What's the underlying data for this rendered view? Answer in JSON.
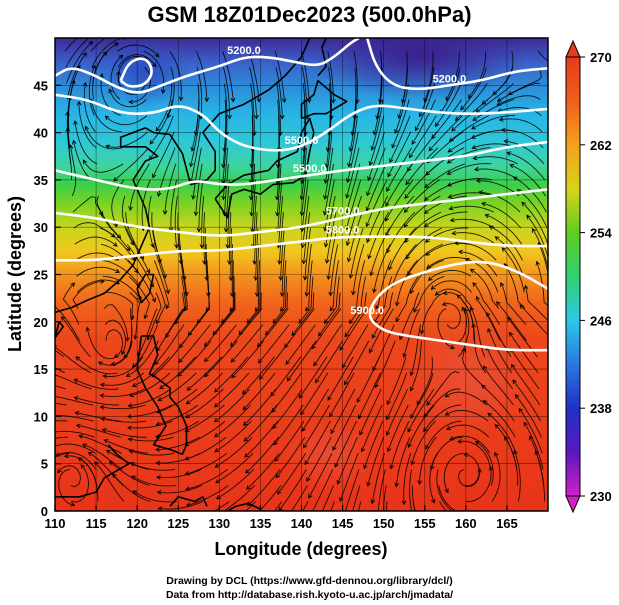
{
  "title": "GSM 18Z01Dec2023 (500.0hPa)",
  "x_axis": {
    "label": "Longitude (degrees)",
    "range": [
      110,
      170
    ],
    "ticks": [
      110,
      115,
      120,
      125,
      130,
      135,
      140,
      145,
      150,
      155,
      160,
      165
    ]
  },
  "y_axis": {
    "label": "Latitude  (degrees)",
    "range": [
      0,
      50
    ],
    "ticks": [
      0,
      5,
      10,
      15,
      20,
      25,
      30,
      35,
      40,
      45
    ]
  },
  "colorbar": {
    "min": 230,
    "max": 270,
    "ticks": [
      230,
      238,
      246,
      254,
      262,
      270
    ]
  },
  "contours": [
    {
      "label": "5200.0",
      "points": [
        [
          110,
          46
        ],
        [
          112,
          47
        ],
        [
          115,
          46
        ],
        [
          117,
          45
        ],
        [
          120,
          44
        ],
        [
          123,
          45
        ],
        [
          126,
          46
        ],
        [
          130,
          47
        ],
        [
          133,
          48
        ],
        [
          136,
          48
        ],
        [
          139,
          47.5
        ],
        [
          142,
          47
        ],
        [
          144,
          48
        ],
        [
          146,
          49.5
        ],
        [
          147,
          50
        ]
      ]
    },
    {
      "label": "",
      "points": [
        [
          118,
          45.5
        ],
        [
          119,
          47.5
        ],
        [
          121,
          48
        ],
        [
          122,
          46.5
        ],
        [
          121,
          45
        ],
        [
          119,
          44.8
        ],
        [
          118,
          45.5
        ]
      ]
    },
    {
      "label": "5200.0",
      "points": [
        [
          148,
          50
        ],
        [
          149,
          47
        ],
        [
          151,
          45
        ],
        [
          154,
          44.5
        ],
        [
          158,
          45
        ],
        [
          162,
          45.5
        ],
        [
          166,
          46.5
        ],
        [
          170,
          46.8
        ]
      ]
    },
    {
      "label": "5500.0",
      "points": [
        [
          110,
          44
        ],
        [
          114,
          43.5
        ],
        [
          118,
          42
        ],
        [
          122,
          42
        ],
        [
          125,
          43
        ],
        [
          128,
          42
        ],
        [
          130,
          40
        ],
        [
          133,
          38.5
        ],
        [
          137,
          38
        ],
        [
          140,
          38.5
        ],
        [
          143,
          40
        ],
        [
          146,
          42
        ],
        [
          149,
          43
        ],
        [
          153,
          42.5
        ],
        [
          158,
          42
        ],
        [
          163,
          42
        ],
        [
          170,
          42.5
        ]
      ]
    },
    {
      "label": "5500.0",
      "points": [
        [
          110,
          36
        ],
        [
          115,
          35
        ],
        [
          120,
          34
        ],
        [
          124,
          34
        ],
        [
          127,
          35
        ],
        [
          130,
          34.5
        ],
        [
          133,
          34.5
        ],
        [
          137,
          35
        ],
        [
          141,
          35.5
        ],
        [
          145,
          36
        ],
        [
          150,
          36.5
        ],
        [
          155,
          37
        ],
        [
          160,
          37.5
        ],
        [
          165,
          38.5
        ],
        [
          170,
          39
        ]
      ]
    },
    {
      "label": "5700.0",
      "points": [
        [
          110,
          31.5
        ],
        [
          115,
          31
        ],
        [
          120,
          30
        ],
        [
          125,
          29.5
        ],
        [
          130,
          29
        ],
        [
          135,
          29.5
        ],
        [
          140,
          30
        ],
        [
          145,
          31
        ],
        [
          150,
          32
        ],
        [
          155,
          32.5
        ],
        [
          160,
          33
        ],
        [
          165,
          33.5
        ],
        [
          170,
          34
        ]
      ]
    },
    {
      "label": "5800.0",
      "points": [
        [
          110,
          26.5
        ],
        [
          115,
          26.5
        ],
        [
          120,
          27
        ],
        [
          125,
          27.5
        ],
        [
          130,
          27.5
        ],
        [
          135,
          28
        ],
        [
          140,
          28.5
        ],
        [
          145,
          29
        ],
        [
          150,
          29
        ],
        [
          155,
          29
        ],
        [
          160,
          28.5
        ],
        [
          165,
          28
        ],
        [
          170,
          28
        ]
      ]
    },
    {
      "label": "5900.0",
      "points": [
        [
          170,
          23.5
        ],
        [
          166,
          25.5
        ],
        [
          162,
          26.5
        ],
        [
          158,
          26
        ],
        [
          154,
          25
        ],
        [
          151,
          24
        ],
        [
          149,
          22.5
        ],
        [
          148,
          20.5
        ],
        [
          150,
          19
        ],
        [
          153,
          18.5
        ],
        [
          157,
          18
        ],
        [
          161,
          17.5
        ],
        [
          165,
          17
        ],
        [
          170,
          17
        ]
      ]
    }
  ]
}
